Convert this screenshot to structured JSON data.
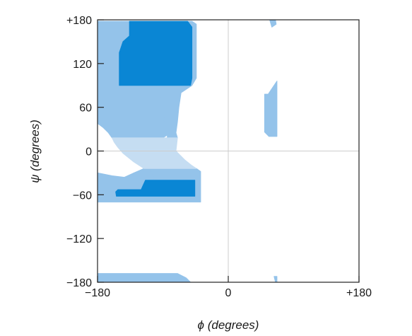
{
  "chart_data": {
    "type": "area",
    "xlabel": "ϕ (degrees)",
    "ylabel": "ψ (degrees)",
    "xlim": [
      -180,
      180
    ],
    "ylim": [
      -180,
      180
    ],
    "x_ticks": [
      {
        "value": -180,
        "label": "−180"
      },
      {
        "value": 0,
        "label": "0"
      },
      {
        "value": 180,
        "label": "+180"
      }
    ],
    "y_ticks": [
      {
        "value": 180,
        "label": "+180"
      },
      {
        "value": 120,
        "label": "120"
      },
      {
        "value": 60,
        "label": "60"
      },
      {
        "value": 0,
        "label": "0"
      },
      {
        "value": -60,
        "label": "−60"
      },
      {
        "value": -120,
        "label": "−120"
      },
      {
        "value": -180,
        "label": "−180"
      }
    ],
    "reference_lines": {
      "x": 0,
      "y": 0
    },
    "grid": false,
    "colors": {
      "outer": "#94c3ea",
      "core": "#0a86d4",
      "bridge": "#c5ddf2",
      "zero_line": "#cccccc",
      "axis": "#222222"
    },
    "regions": [
      {
        "level": "outer",
        "points": [
          [
            -180,
            178
          ],
          [
            -147,
            178
          ],
          [
            -140,
            174
          ],
          [
            -140,
            165
          ],
          [
            -134,
            158
          ],
          [
            -127,
            150
          ],
          [
            -122,
            148
          ],
          [
            -122,
            144
          ],
          [
            -118,
            140
          ],
          [
            -110,
            130
          ],
          [
            -106,
            120
          ],
          [
            -104,
            110
          ],
          [
            -104,
            100
          ],
          [
            -102,
            96
          ],
          [
            -98,
            87
          ],
          [
            -94,
            75
          ],
          [
            -90,
            60
          ],
          [
            -88,
            40
          ],
          [
            -84,
            22
          ],
          [
            -90,
            18
          ],
          [
            -160,
            18
          ],
          [
            -165,
            25
          ],
          [
            -172,
            32
          ],
          [
            -180,
            38
          ]
        ]
      },
      {
        "level": "outer",
        "points": [
          [
            -147,
            178
          ],
          [
            -122,
            178
          ],
          [
            -122,
            144
          ],
          [
            -127,
            150
          ],
          [
            -134,
            158
          ],
          [
            -140,
            165
          ],
          [
            -140,
            174
          ]
        ]
      },
      {
        "level": "outer",
        "points": [
          [
            -122,
            178
          ],
          [
            -50,
            178
          ],
          [
            -44,
            174
          ],
          [
            -44,
            100
          ],
          [
            -50,
            90
          ],
          [
            -65,
            80
          ],
          [
            -68,
            60
          ],
          [
            -70,
            40
          ],
          [
            -72,
            25
          ],
          [
            -70,
            18
          ],
          [
            -84,
            18
          ],
          [
            -84,
            22
          ],
          [
            -88,
            40
          ],
          [
            -90,
            60
          ],
          [
            -94,
            75
          ],
          [
            -98,
            87
          ],
          [
            -102,
            96
          ],
          [
            -104,
            100
          ],
          [
            -104,
            110
          ],
          [
            -106,
            120
          ],
          [
            -110,
            130
          ],
          [
            -118,
            140
          ],
          [
            -122,
            144
          ]
        ]
      },
      {
        "level": "outer",
        "points": [
          [
            -180,
            -30
          ],
          [
            -160,
            -34
          ],
          [
            -143,
            -36
          ],
          [
            -130,
            -30
          ],
          [
            -116,
            -24
          ],
          [
            -108,
            -24
          ],
          [
            -102,
            -36
          ],
          [
            -106,
            -52
          ],
          [
            -112,
            -58
          ],
          [
            -122,
            -58
          ],
          [
            -140,
            -60
          ],
          [
            -175,
            -63
          ],
          [
            -180,
            -70
          ]
        ]
      },
      {
        "level": "outer",
        "points": [
          [
            -108,
            -24
          ],
          [
            -44,
            -24
          ],
          [
            -38,
            -28
          ],
          [
            -38,
            -70
          ],
          [
            -180,
            -70
          ],
          [
            -175,
            -63
          ],
          [
            -140,
            -60
          ],
          [
            -122,
            -58
          ],
          [
            -112,
            -58
          ],
          [
            -106,
            -52
          ],
          [
            -102,
            -36
          ]
        ]
      },
      {
        "level": "outer",
        "points": [
          [
            -180,
            -168
          ],
          [
            -70,
            -168
          ],
          [
            -58,
            -174
          ],
          [
            -52,
            -180
          ],
          [
            -180,
            -180
          ]
        ]
      },
      {
        "level": "outer",
        "points": [
          [
            57,
            180
          ],
          [
            65,
            180
          ],
          [
            66,
            174
          ],
          [
            60,
            170
          ]
        ]
      },
      {
        "level": "outer",
        "points": [
          [
            55,
            78
          ],
          [
            67,
            96
          ],
          [
            67,
            20
          ],
          [
            56,
            20
          ],
          [
            50,
            26
          ],
          [
            50,
            78
          ]
        ]
      },
      {
        "level": "outer",
        "points": [
          [
            65,
            -180
          ],
          [
            67,
            -180
          ],
          [
            67,
            -172
          ],
          [
            63,
            -172
          ]
        ]
      },
      {
        "level": "bridge",
        "points": [
          [
            -160,
            18
          ],
          [
            -70,
            18
          ],
          [
            -72,
            0
          ],
          [
            -60,
            -12
          ],
          [
            -50,
            -20
          ],
          [
            -44,
            -24
          ],
          [
            -108,
            -24
          ],
          [
            -116,
            -24
          ],
          [
            -130,
            -15
          ],
          [
            -145,
            -3
          ],
          [
            -152,
            5
          ],
          [
            -157,
            12
          ]
        ]
      },
      {
        "level": "core",
        "points": [
          [
            -150,
            90
          ],
          [
            -52,
            90
          ],
          [
            -50,
            100
          ],
          [
            -50,
            170
          ],
          [
            -56,
            178
          ],
          [
            -136,
            178
          ],
          [
            -136,
            158
          ],
          [
            -145,
            150
          ],
          [
            -150,
            135
          ]
        ]
      },
      {
        "level": "core",
        "points": [
          [
            -114,
            -40
          ],
          [
            -46,
            -40
          ],
          [
            -46,
            -62
          ],
          [
            -154,
            -62
          ],
          [
            -155,
            -56
          ],
          [
            -152,
            -53
          ],
          [
            -120,
            -53
          ]
        ]
      }
    ]
  }
}
